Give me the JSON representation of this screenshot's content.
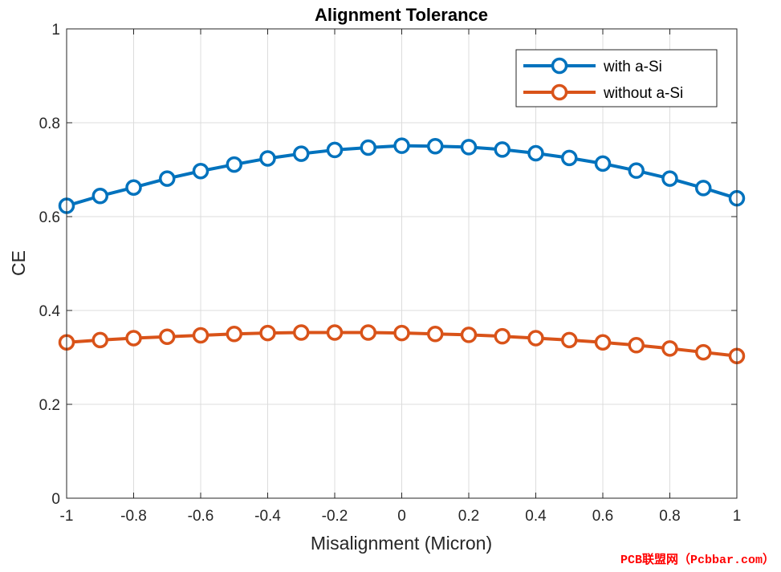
{
  "chart_data": {
    "type": "line",
    "title": "Alignment Tolerance",
    "xlabel": "Misalignment (Micron)",
    "ylabel": "CE",
    "xlim": [
      -1,
      1
    ],
    "ylim": [
      0,
      1
    ],
    "xticks": [
      -1,
      -0.8,
      -0.6,
      -0.4,
      -0.2,
      0,
      0.2,
      0.4,
      0.6,
      0.8,
      1
    ],
    "xtick_labels": [
      "-1",
      "-0.8",
      "-0.6",
      "-0.4",
      "-0.2",
      "0",
      "0.2",
      "0.4",
      "0.6",
      "0.8",
      "1"
    ],
    "yticks": [
      0,
      0.2,
      0.4,
      0.6,
      0.8,
      1
    ],
    "ytick_labels": [
      "0",
      "0.2",
      "0.4",
      "0.6",
      "0.8",
      "1"
    ],
    "grid": true,
    "legend_position": "top-right",
    "x": [
      -1,
      -0.9,
      -0.8,
      -0.7,
      -0.6,
      -0.5,
      -0.4,
      -0.3,
      -0.2,
      -0.1,
      0,
      0.1,
      0.2,
      0.3,
      0.4,
      0.5,
      0.6,
      0.7,
      0.8,
      0.9,
      1
    ],
    "series": [
      {
        "name": "with a-Si",
        "color": "#0072bd",
        "marker": "circle",
        "values": [
          0.623,
          0.644,
          0.662,
          0.681,
          0.697,
          0.711,
          0.724,
          0.734,
          0.742,
          0.747,
          0.751,
          0.75,
          0.748,
          0.743,
          0.735,
          0.725,
          0.713,
          0.698,
          0.681,
          0.661,
          0.639
        ]
      },
      {
        "name": "without a-Si",
        "color": "#d95319",
        "marker": "circle",
        "values": [
          0.332,
          0.337,
          0.341,
          0.344,
          0.347,
          0.35,
          0.352,
          0.353,
          0.353,
          0.353,
          0.352,
          0.35,
          0.348,
          0.345,
          0.341,
          0.337,
          0.332,
          0.326,
          0.319,
          0.311,
          0.303
        ]
      }
    ]
  },
  "watermark": "PCB联盟网（Pcbbar.com）"
}
